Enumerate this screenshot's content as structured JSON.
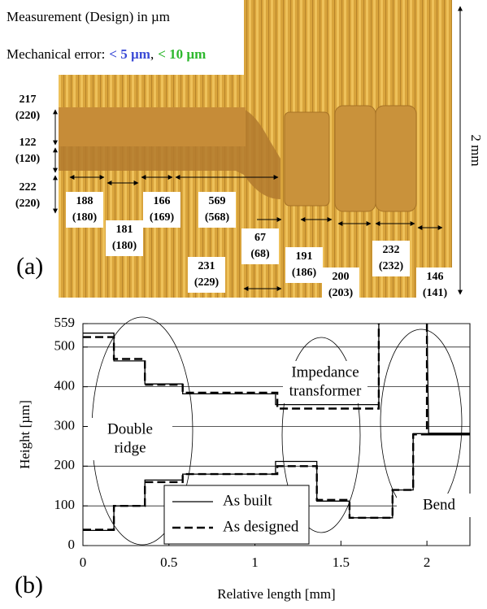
{
  "panel_a": {
    "title": "Measurement (Design) in µm",
    "error_label": "Mechanical error:",
    "error_small": "< 5 µm",
    "error_small_color": "#3b4bd6",
    "separator": ",",
    "error_large": "< 10 µm",
    "error_large_color": "#2db82d",
    "scale": "2 mm",
    "label": "(a)",
    "dimensions": [
      {
        "measured": "217",
        "design": "(220)",
        "color": "#6b7fd8"
      },
      {
        "measured": "122",
        "design": "(120)",
        "color": "#6b7fd8"
      },
      {
        "measured": "222",
        "design": "(220)",
        "color": "#6b7fd8"
      },
      {
        "measured": "188",
        "design": "(180)",
        "color": "#2db82d"
      },
      {
        "measured": "181",
        "design": "(180)",
        "color": "#6b7fd8"
      },
      {
        "measured": "166",
        "design": "(169)",
        "color": "#1f1fc8"
      },
      {
        "measured": "569",
        "design": "(568)",
        "color": "#1f1fc8"
      },
      {
        "measured": "231",
        "design": "(229)",
        "color": "#1f1fc8"
      },
      {
        "measured": "67",
        "design": "(68)",
        "color": "#1f1fc8"
      },
      {
        "measured": "191",
        "design": "(186)",
        "color": "#1f1fc8"
      },
      {
        "measured": "200",
        "design": "(203)",
        "color": "#1f1fc8"
      },
      {
        "measured": "232",
        "design": "(232)",
        "color": "#1f1fc8"
      },
      {
        "measured": "146",
        "design": "(141)",
        "color": "#6b7fd8"
      }
    ]
  },
  "chart_data": {
    "type": "line",
    "panel_label": "(b)",
    "x_label": "Relative length [mm]",
    "y_label": "Height [µm]",
    "xlim": [
      0,
      2.25
    ],
    "ylim": [
      0,
      559
    ],
    "xticks": [
      0,
      0.5,
      1,
      1.5,
      2
    ],
    "yticks": [
      0,
      100,
      200,
      300,
      400,
      500,
      559
    ],
    "grid": true,
    "annotations": [
      [
        "Double",
        "ridge"
      ],
      [
        "Impedance",
        "transformer"
      ],
      [
        "Bend"
      ]
    ],
    "series": [
      {
        "name": "As built",
        "color": "#000000",
        "style": "solid",
        "x": [
          0,
          0.18,
          0.18,
          0.36,
          0.36,
          0.58,
          0.58,
          1.12,
          1.12,
          1.72,
          1.72,
          1.72,
          2.0,
          2.01,
          2.01,
          2.25,
          2.25,
          0,
          0.18,
          0.18,
          0.36,
          0.36,
          0.58,
          0.58,
          1.12,
          1.12,
          1.36,
          1.36,
          1.55,
          1.55,
          1.8,
          1.8,
          1.92,
          1.92,
          2.25
        ],
        "values": [
          535,
          535,
          465,
          465,
          407,
          407,
          382,
          382,
          355,
          355,
          559,
          null,
          559,
          300,
          283,
          283,
          null,
          38,
          38,
          100,
          100,
          165,
          165,
          180,
          180,
          212,
          212,
          112,
          112,
          70,
          70,
          140,
          140,
          282,
          282
        ]
      },
      {
        "name": "As designed",
        "color": "#000000",
        "style": "dashed",
        "x": [
          0,
          0.18,
          0.18,
          0.36,
          0.36,
          0.58,
          0.58,
          1.13,
          1.13,
          1.72,
          1.72,
          1.72,
          2.0,
          2.0,
          2.25,
          2.25,
          0,
          0.18,
          0.18,
          0.36,
          0.36,
          0.58,
          0.58,
          1.13,
          1.13,
          1.36,
          1.36,
          1.55,
          1.55,
          1.8,
          1.8,
          1.92,
          1.92,
          2.25
        ],
        "values": [
          525,
          525,
          470,
          470,
          405,
          405,
          385,
          385,
          345,
          345,
          559,
          null,
          559,
          280,
          280,
          null,
          40,
          40,
          100,
          100,
          160,
          160,
          180,
          180,
          200,
          200,
          115,
          115,
          70,
          70,
          140,
          140,
          280,
          280
        ]
      }
    ]
  }
}
